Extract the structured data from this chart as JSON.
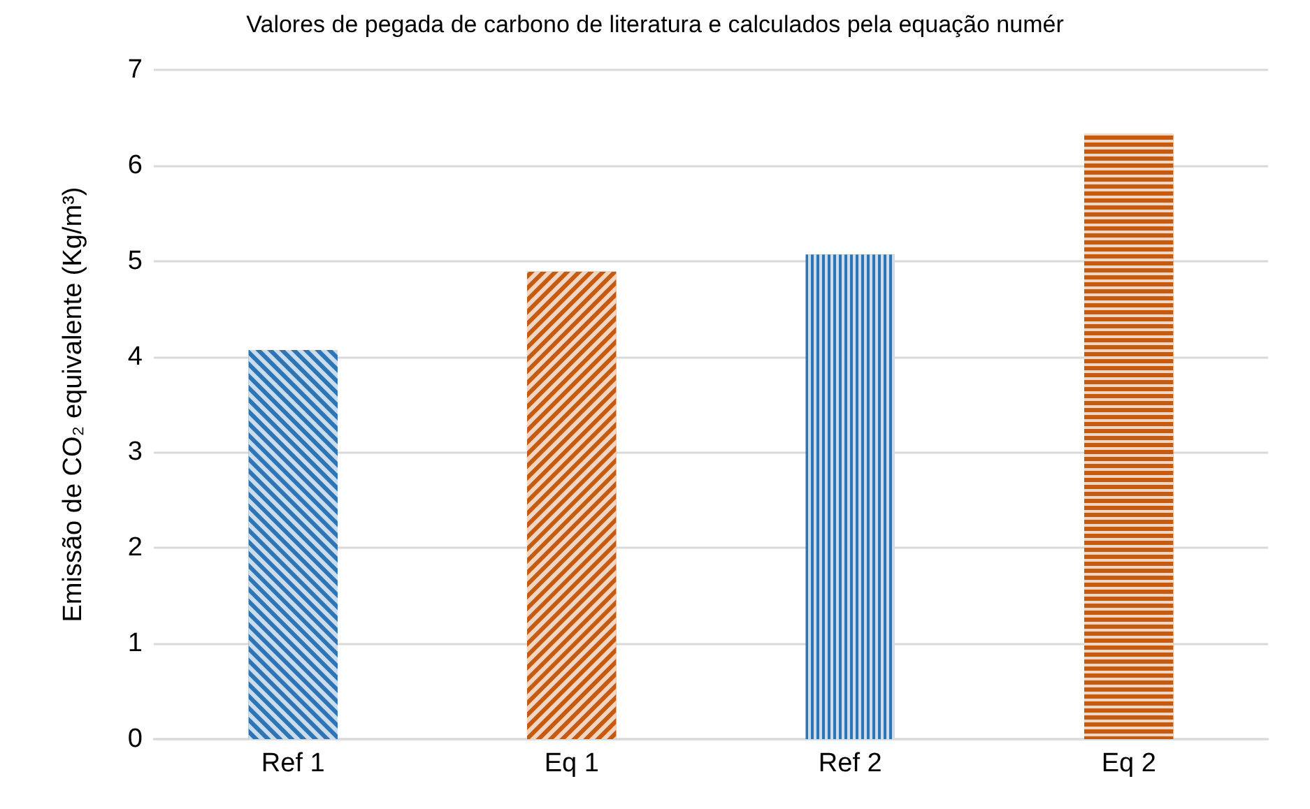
{
  "chart_data": {
    "type": "bar",
    "title": "Valores de pegada de carbono de literatura e calculados pela equação numér",
    "ylabel": "Emissão de CO₂ equivalente (Kg/m³)",
    "categories": [
      "Ref 1",
      "Eq 1",
      "Ref 2",
      "Eq 2"
    ],
    "values": [
      4.07,
      4.89,
      5.07,
      6.33
    ],
    "colors": [
      "#2e75b6",
      "#c55a11",
      "#2e75b6",
      "#c55a11"
    ],
    "ylim": [
      0,
      7
    ],
    "yticks": [
      0,
      1,
      2,
      3,
      4,
      5,
      6,
      7
    ],
    "grid": "y"
  }
}
